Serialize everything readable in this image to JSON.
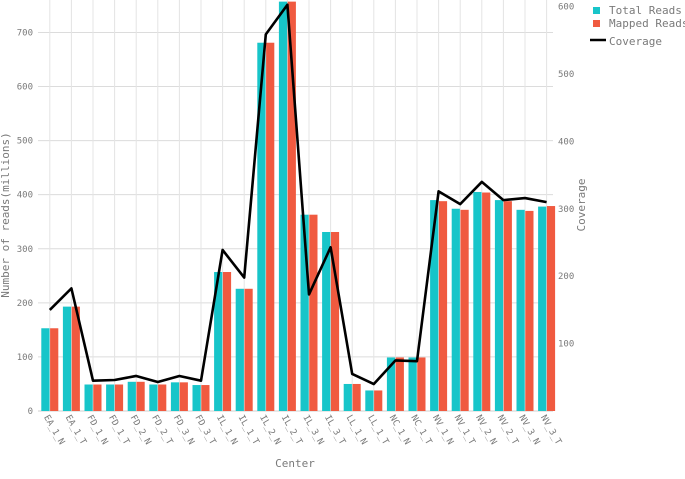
{
  "chart_data": {
    "type": "bar",
    "xlabel": "Center",
    "ylabel": "Number of reads(millions)",
    "ylabel_right": "Coverage",
    "ylim": [
      0,
      760
    ],
    "ylim_right": [
      0,
      610
    ],
    "yticks": [
      0,
      100,
      200,
      300,
      400,
      500,
      600,
      700
    ],
    "yticks_right": [
      100,
      200,
      300,
      400,
      500,
      600
    ],
    "grid": true,
    "legend_position": "top-right",
    "categories": [
      "EA_1_N",
      "EA_1_T",
      "FD_1_N",
      "FD_1_T",
      "FD_2_N",
      "FD_2_T",
      "FD_3_N",
      "FD_3_T",
      "IL_1_N",
      "IL_1_T",
      "IL_2_N",
      "IL_2_T",
      "IL_3_N",
      "IL_3_T",
      "LL_1_N",
      "LL_1_T",
      "NC_1_N",
      "NC_1_T",
      "NV_1_N",
      "NV_1_T",
      "NV_2_N",
      "NV_2_T",
      "NV_3_N",
      "NV_3_T"
    ],
    "series": [
      {
        "name": "Total Reads",
        "kind": "bar",
        "axis": "left",
        "color": "#17c5c9",
        "values": [
          153,
          193,
          49,
          49,
          54,
          49,
          53,
          48,
          257,
          226,
          681,
          757,
          363,
          331,
          50,
          38,
          99,
          99,
          390,
          374,
          405,
          390,
          372,
          378
        ]
      },
      {
        "name": "Mapped Reads",
        "kind": "bar",
        "axis": "left",
        "color": "#f05a40",
        "values": [
          153,
          193,
          49,
          49,
          54,
          49,
          53,
          48,
          257,
          226,
          681,
          757,
          363,
          331,
          50,
          38,
          99,
          99,
          388,
          372,
          404,
          388,
          370,
          379
        ]
      },
      {
        "name": "Coverage",
        "kind": "line",
        "axis": "right",
        "color": "#000000",
        "values": [
          150,
          182,
          45,
          46,
          52,
          43,
          52,
          45,
          239,
          198,
          559,
          603,
          173,
          243,
          55,
          40,
          75,
          74,
          326,
          307,
          340,
          313,
          316,
          310
        ]
      }
    ]
  }
}
